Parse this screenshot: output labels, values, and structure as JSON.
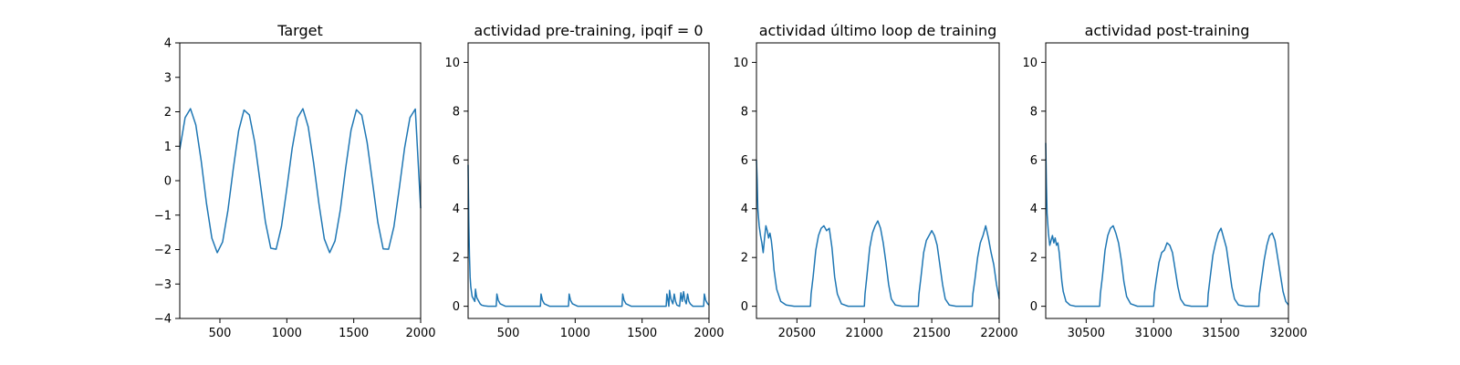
{
  "chart_data": [
    {
      "type": "line",
      "title": "Target",
      "xlabel": "",
      "ylabel": "",
      "xlim": [
        200,
        2000
      ],
      "ylim": [
        -4,
        4
      ],
      "xticks": [
        500,
        1000,
        1500,
        2000
      ],
      "yticks": [
        -4,
        -3,
        -2,
        -1,
        0,
        1,
        2,
        3,
        4
      ],
      "grid": false,
      "color": "#1f77b4",
      "x": [
        200,
        240,
        280,
        320,
        360,
        400,
        440,
        480,
        520,
        560,
        600,
        640,
        680,
        720,
        760,
        800,
        840,
        880,
        920,
        960,
        1000,
        1040,
        1080,
        1120,
        1160,
        1200,
        1240,
        1280,
        1320,
        1360,
        1400,
        1440,
        1480,
        1520,
        1560,
        1600,
        1640,
        1680,
        1720,
        1760,
        1800,
        1840,
        1880,
        1920,
        1960,
        2000
      ],
      "y": [
        0.9,
        1.83,
        2.09,
        1.62,
        0.58,
        -0.67,
        -1.67,
        -2.09,
        -1.78,
        -0.86,
        0.35,
        1.45,
        2.05,
        1.91,
        1.12,
        -0.03,
        -1.2,
        -1.96,
        -1.99,
        -1.33,
        -0.23,
        0.94,
        1.82,
        2.09,
        1.56,
        0.52,
        -0.67,
        -1.69,
        -2.09,
        -1.75,
        -0.84,
        0.38,
        1.47,
        2.06,
        1.9,
        1.11,
        -0.04,
        -1.21,
        -1.98,
        -1.99,
        -1.34,
        -0.23,
        0.95,
        1.83,
        2.08,
        -0.8
      ]
    },
    {
      "type": "line",
      "title": "actividad pre-training, ipqif = 0",
      "xlabel": "",
      "ylabel": "",
      "xlim": [
        200,
        2000
      ],
      "ylim": [
        -0.5,
        10.8
      ],
      "xticks": [
        500,
        1000,
        1500,
        2000
      ],
      "yticks": [
        0,
        2,
        4,
        6,
        8,
        10
      ],
      "grid": false,
      "color": "#1f77b4",
      "x": [
        200,
        205,
        210,
        215,
        220,
        230,
        240,
        250,
        255,
        260,
        265,
        270,
        280,
        290,
        300,
        320,
        350,
        400,
        410,
        415,
        425,
        440,
        480,
        740,
        745,
        755,
        770,
        810,
        950,
        955,
        965,
        980,
        1020,
        1350,
        1355,
        1365,
        1380,
        1420,
        1680,
        1685,
        1695,
        1700,
        1705,
        1715,
        1730,
        1740,
        1750,
        1760,
        1780,
        1790,
        1800,
        1810,
        1820,
        1830,
        1840,
        1850,
        1860,
        1870,
        1880,
        1900,
        1950,
        1960,
        1965,
        1975,
        1990,
        2000
      ],
      "y": [
        5.8,
        3.5,
        2.1,
        1.2,
        0.8,
        0.4,
        0.3,
        0.2,
        0.7,
        0.5,
        0.35,
        0.3,
        0.2,
        0.1,
        0.05,
        0.02,
        0.0,
        0.0,
        0.0,
        0.5,
        0.25,
        0.1,
        0.0,
        0.0,
        0.5,
        0.25,
        0.1,
        0.0,
        0.0,
        0.5,
        0.25,
        0.1,
        0.0,
        0.0,
        0.5,
        0.25,
        0.1,
        0.0,
        0.0,
        0.5,
        0.2,
        0.0,
        0.65,
        0.3,
        0.1,
        0.5,
        0.2,
        0.05,
        0.0,
        0.55,
        0.2,
        0.6,
        0.25,
        0.1,
        0.5,
        0.2,
        0.1,
        0.05,
        0.0,
        0.0,
        0.0,
        0.0,
        0.5,
        0.25,
        0.1,
        0.05
      ]
    },
    {
      "type": "line",
      "title": "actividad último loop de training",
      "xlabel": "",
      "ylabel": "",
      "xlim": [
        20200,
        22000
      ],
      "ylim": [
        -0.5,
        10.8
      ],
      "xticks": [
        20500,
        21000,
        21500,
        22000
      ],
      "yticks": [
        0,
        2,
        4,
        6,
        8,
        10
      ],
      "grid": false,
      "color": "#1f77b4",
      "x": [
        20200,
        20205,
        20210,
        20220,
        20230,
        20240,
        20250,
        20260,
        20270,
        20280,
        20290,
        20300,
        20310,
        20320,
        20330,
        20350,
        20380,
        20420,
        20480,
        20600,
        20605,
        20620,
        20640,
        20660,
        20680,
        20700,
        20720,
        20740,
        20760,
        20780,
        20800,
        20830,
        20880,
        21000,
        21005,
        21020,
        21040,
        21060,
        21080,
        21100,
        21120,
        21140,
        21160,
        21180,
        21200,
        21230,
        21280,
        21400,
        21405,
        21420,
        21440,
        21460,
        21480,
        21500,
        21520,
        21540,
        21560,
        21580,
        21600,
        21630,
        21680,
        21800,
        21805,
        21820,
        21840,
        21860,
        21880,
        21900,
        21920,
        21940,
        21960,
        21980,
        22000
      ],
      "y": [
        6.0,
        5.2,
        4.0,
        3.3,
        2.9,
        2.6,
        2.2,
        2.8,
        3.3,
        3.1,
        2.8,
        3.0,
        2.7,
        2.2,
        1.5,
        0.7,
        0.2,
        0.05,
        0.0,
        0.0,
        0.5,
        1.2,
        2.3,
        2.9,
        3.2,
        3.3,
        3.1,
        3.2,
        2.4,
        1.2,
        0.5,
        0.1,
        0.0,
        0.0,
        0.5,
        1.3,
        2.4,
        3.0,
        3.3,
        3.5,
        3.2,
        2.6,
        1.8,
        0.9,
        0.3,
        0.05,
        0.0,
        0.0,
        0.5,
        1.2,
        2.2,
        2.7,
        2.9,
        3.1,
        2.9,
        2.5,
        1.7,
        0.9,
        0.3,
        0.05,
        0.0,
        0.0,
        0.5,
        1.1,
        2.0,
        2.6,
        2.9,
        3.3,
        2.8,
        2.2,
        1.7,
        0.9,
        0.3
      ]
    },
    {
      "type": "line",
      "title": "actividad post-training",
      "xlabel": "",
      "ylabel": "",
      "xlim": [
        30200,
        32000
      ],
      "ylim": [
        -0.5,
        10.8
      ],
      "xticks": [
        30500,
        31000,
        31500,
        32000
      ],
      "yticks": [
        0,
        2,
        4,
        6,
        8,
        10
      ],
      "grid": false,
      "color": "#1f77b4",
      "x": [
        30200,
        30205,
        30210,
        30220,
        30230,
        30240,
        30250,
        30260,
        30270,
        30280,
        30290,
        30300,
        30310,
        30320,
        30330,
        30350,
        30380,
        30420,
        30480,
        30600,
        30605,
        30620,
        30640,
        30660,
        30680,
        30700,
        30720,
        30740,
        30760,
        30780,
        30800,
        30830,
        30880,
        31000,
        31005,
        31020,
        31040,
        31060,
        31080,
        31100,
        31120,
        31140,
        31160,
        31180,
        31200,
        31230,
        31280,
        31400,
        31405,
        31420,
        31440,
        31460,
        31480,
        31500,
        31520,
        31540,
        31560,
        31580,
        31600,
        31630,
        31680,
        31780,
        31785,
        31800,
        31820,
        31840,
        31860,
        31880,
        31900,
        31920,
        31940,
        31960,
        31980,
        32000
      ],
      "y": [
        6.7,
        5.0,
        3.8,
        3.0,
        2.5,
        2.7,
        2.9,
        2.6,
        2.8,
        2.5,
        2.6,
        2.2,
        1.6,
        1.0,
        0.6,
        0.2,
        0.05,
        0.0,
        0.0,
        0.0,
        0.5,
        1.2,
        2.3,
        2.9,
        3.2,
        3.3,
        3.0,
        2.6,
        1.9,
        1.0,
        0.4,
        0.1,
        0.0,
        0.0,
        0.5,
        1.1,
        1.8,
        2.2,
        2.3,
        2.6,
        2.5,
        2.2,
        1.5,
        0.8,
        0.3,
        0.05,
        0.0,
        0.0,
        0.5,
        1.2,
        2.1,
        2.6,
        3.0,
        3.2,
        2.8,
        2.4,
        1.6,
        0.8,
        0.3,
        0.05,
        0.0,
        0.0,
        0.5,
        1.1,
        1.9,
        2.5,
        2.9,
        3.0,
        2.7,
        2.0,
        1.3,
        0.6,
        0.2,
        0.05
      ]
    }
  ]
}
